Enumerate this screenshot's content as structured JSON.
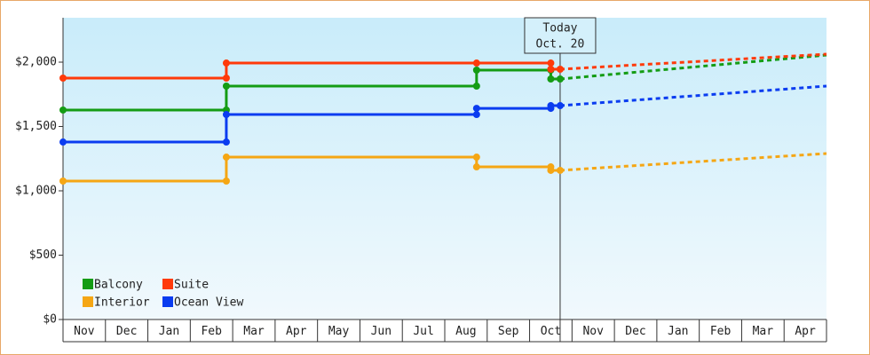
{
  "chart_data": {
    "type": "step-line",
    "categories": [
      "Nov",
      "Dec",
      "Jan",
      "Feb",
      "Mar",
      "Apr",
      "May",
      "Jun",
      "Jul",
      "Aug",
      "Sep",
      "Oct",
      "Nov",
      "Dec",
      "Jan",
      "Feb",
      "Mar",
      "Apr"
    ],
    "xlim": [
      0,
      18
    ],
    "ylim": [
      0,
      2345
    ],
    "yticks": [
      {
        "value": 0,
        "label": "$0"
      },
      {
        "value": 500,
        "label": "$500"
      },
      {
        "value": 1000,
        "label": "$1,000"
      },
      {
        "value": 1500,
        "label": "$1,500"
      },
      {
        "value": 2000,
        "label": "$2,000"
      }
    ],
    "annotation": {
      "x": 11.72,
      "lines": [
        "Today",
        "Oct. 20"
      ]
    },
    "legend": "lower left",
    "series": [
      {
        "name": "Balcony",
        "color": "#149c14",
        "x": [
          0,
          3.85,
          3.85,
          9.75,
          9.75,
          11.5,
          11.5,
          11.72
        ],
        "values": [
          1628,
          1628,
          1814,
          1814,
          1938,
          1938,
          1869,
          1869
        ],
        "forecast": {
          "x": [
            11.72,
            18
          ],
          "values": [
            1869,
            2055
          ]
        }
      },
      {
        "name": "Suite",
        "color": "#ff3a0a",
        "x": [
          0,
          3.85,
          3.85,
          9.75,
          11.5,
          11.5,
          11.72
        ],
        "values": [
          1876,
          1876,
          1993,
          1993,
          1993,
          1945,
          1945
        ],
        "forecast": {
          "x": [
            11.72,
            18
          ],
          "values": [
            1945,
            2062
          ]
        }
      },
      {
        "name": "Interior",
        "color": "#f5a614",
        "x": [
          0,
          3.85,
          3.85,
          9.75,
          9.75,
          11.5,
          11.5,
          11.72
        ],
        "values": [
          1076,
          1076,
          1262,
          1262,
          1186,
          1186,
          1159,
          1159
        ],
        "forecast": {
          "x": [
            11.72,
            18
          ],
          "values": [
            1159,
            1290
          ]
        }
      },
      {
        "name": "Ocean View",
        "color": "#0a3cf0",
        "x": [
          0,
          3.85,
          3.85,
          9.75,
          9.75,
          11.5,
          11.5,
          11.72
        ],
        "values": [
          1379,
          1379,
          1593,
          1593,
          1641,
          1641,
          1662,
          1662
        ],
        "forecast": {
          "x": [
            11.72,
            18
          ],
          "values": [
            1662,
            1814
          ]
        }
      }
    ]
  }
}
